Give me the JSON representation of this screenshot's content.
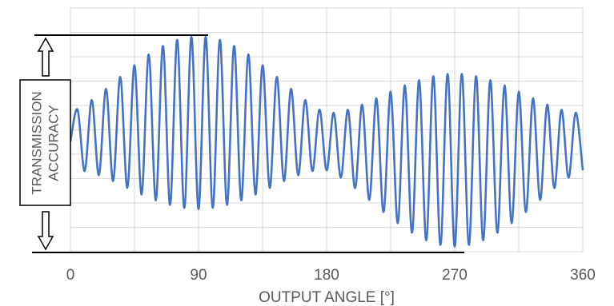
{
  "chart_data": {
    "type": "line",
    "x_label": "OUTPUT ANGLE [°]",
    "annotation": "TRANSMISSION ACCURACY",
    "x": [
      0,
      5,
      10,
      15,
      20,
      25,
      30,
      35,
      40,
      45,
      50,
      55,
      60,
      65,
      70,
      75,
      80,
      85,
      90,
      95,
      100,
      105,
      110,
      115,
      120,
      125,
      130,
      135,
      140,
      145,
      150,
      155,
      160,
      165,
      170,
      175,
      180,
      185,
      190,
      195,
      200,
      205,
      210,
      215,
      220,
      225,
      230,
      235,
      240,
      245,
      250,
      255,
      260,
      265,
      270,
      275,
      280,
      285,
      290,
      295,
      300,
      305,
      310,
      315,
      320,
      325,
      330,
      335,
      340,
      345,
      350,
      355,
      360
    ],
    "series": [
      {
        "color": "#4472c4",
        "values": [
          -0.48,
          0.83,
          -1.69,
          1.22,
          -1.86,
          1.68,
          -2.1,
          2.17,
          -2.38,
          2.65,
          -2.65,
          3.09,
          -2.89,
          3.44,
          -3.08,
          3.69,
          -3.2,
          3.82,
          -3.25,
          3.82,
          -3.2,
          3.69,
          -3.08,
          3.44,
          -2.89,
          3.09,
          -2.65,
          2.65,
          -2.38,
          2.17,
          -2.1,
          1.68,
          -1.86,
          1.22,
          -1.69,
          0.83,
          -1.66,
          0.7,
          -1.96,
          0.82,
          -2.39,
          1.03,
          -2.87,
          1.29,
          -3.37,
          1.56,
          -3.83,
          1.82,
          -4.22,
          2.04,
          -4.53,
          2.2,
          -4.72,
          2.29,
          -4.79,
          2.29,
          -4.72,
          2.2,
          -4.53,
          2.04,
          -4.22,
          1.82,
          -3.83,
          1.56,
          -3.37,
          1.29,
          -2.87,
          1.03,
          -2.39,
          0.82,
          -1.96,
          0.7,
          -1.66
        ]
      }
    ],
    "xlim": [
      0,
      360
    ],
    "xticks": [
      0,
      90,
      180,
      270,
      360
    ],
    "xgrid": [
      0,
      45,
      90,
      135,
      180,
      225,
      270,
      315,
      360
    ],
    "ylim": [
      -5,
      5
    ],
    "yticks": [
      -5,
      -4,
      -3,
      -2,
      -1,
      0,
      1,
      2,
      3,
      4,
      5
    ],
    "grid": true
  }
}
